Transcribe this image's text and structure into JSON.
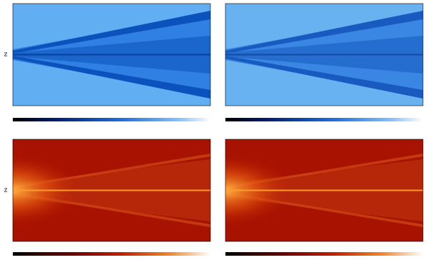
{
  "panels": [
    {
      "axis_label": "z"
    },
    {
      "axis_label": "z"
    }
  ]
}
